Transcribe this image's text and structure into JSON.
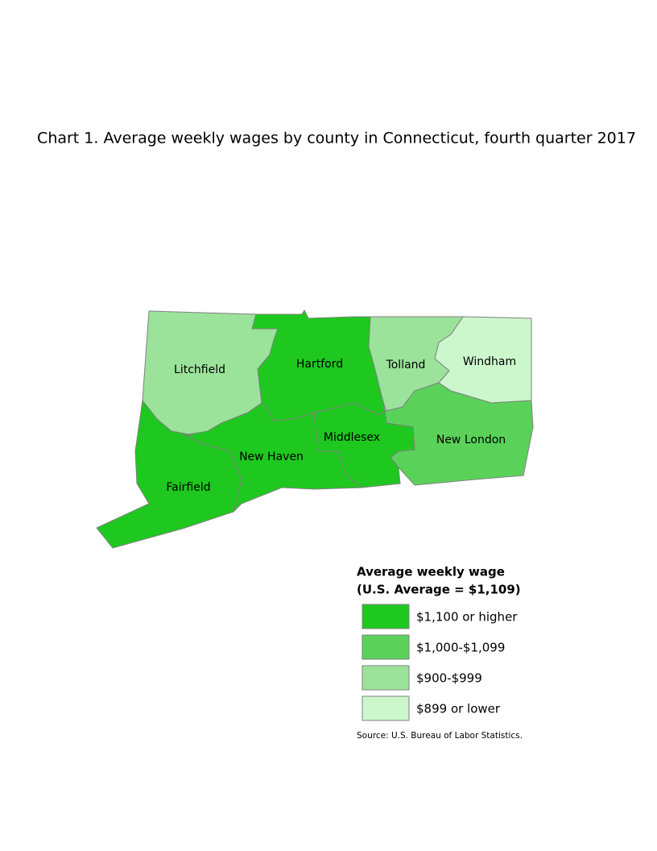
{
  "title": "Chart 1. Average weekly wages by county in Connecticut, fourth quarter 2017",
  "counties": [
    {
      "name": "Litchfield",
      "color": "#9be39b"
    },
    {
      "name": "Hartford",
      "color": "#1ec81e"
    },
    {
      "name": "Tolland",
      "color": "#9be39b"
    },
    {
      "name": "Windham",
      "color": "#ccf7cc"
    },
    {
      "name": "New London",
      "color": "#5ad25a"
    },
    {
      "name": "Middlesex",
      "color": "#1ec81e"
    },
    {
      "name": "New Haven",
      "color": "#1ec81e"
    },
    {
      "name": "Fairfield",
      "color": "#1ec81e"
    }
  ],
  "legend": {
    "title": [
      "Average weekly wage",
      "(U.S. Average = $1,109)"
    ],
    "items": [
      {
        "label": "$1,100 or higher",
        "color": "#1ec81e"
      },
      {
        "label": "$1,000-$1,099",
        "color": "#5ad25a"
      },
      {
        "label": "$900-$999",
        "color": "#9be39b"
      },
      {
        "label": "$899 or lower",
        "color": "#ccf7cc"
      }
    ]
  },
  "source": "Source: U.S. Bureau of Labor Statistics."
}
